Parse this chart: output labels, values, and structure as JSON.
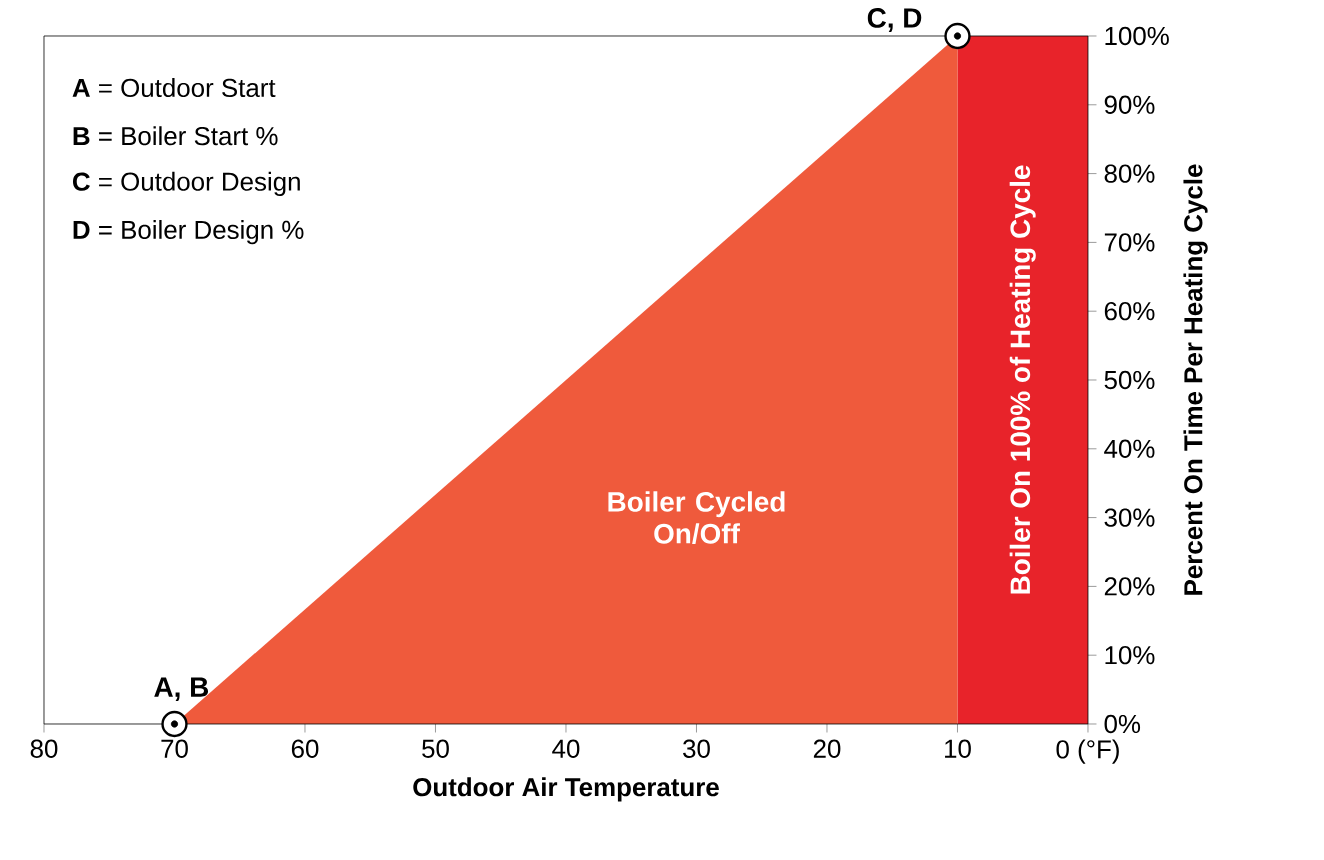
{
  "chart_data": {
    "type": "area",
    "xlabel": "Outdoor Air Temperature",
    "ylabel": "Percent On Time Per Heating Cycle",
    "series": [
      {
        "x": [
          70,
          10
        ],
        "values": [
          0,
          100
        ],
        "color": "#ef5a3c"
      }
    ],
    "marker": "circle",
    "grid": false,
    "xlim": [
      80,
      0
    ],
    "ylim": [
      0,
      100
    ],
    "xticks": [
      80,
      70,
      60,
      50,
      40,
      30,
      20,
      10,
      {
        "value": 0,
        "label": "0 (°F)"
      }
    ],
    "yticks": [
      {
        "value": 0,
        "label": "0%"
      },
      {
        "value": 10,
        "label": "10%"
      },
      {
        "value": 20,
        "label": "20%"
      },
      {
        "value": 30,
        "label": "30%"
      },
      {
        "value": 40,
        "label": "40%"
      },
      {
        "value": 50,
        "label": "50%"
      },
      {
        "value": 60,
        "label": "60%"
      },
      {
        "value": 70,
        "label": "70%"
      },
      {
        "value": 80,
        "label": "80%"
      },
      {
        "value": 90,
        "label": "90%"
      },
      {
        "value": 100,
        "label": "100%"
      }
    ],
    "bands": [
      {
        "axis": "x",
        "from": 10,
        "to": 0,
        "label": "Boiler On 100% of Heating Cycle",
        "color": "#e8232a"
      }
    ],
    "annotations": [
      {
        "text": "A, B",
        "x": 70,
        "y": 0
      },
      {
        "text": "C, D",
        "x": 10,
        "y": 100
      },
      "**A** = Outdoor Start",
      "**B** = Boiler Start %",
      "**C** = Outdoor Design",
      "**D** = Boiler Design %",
      "Boiler Cycled On/Off"
    ]
  }
}
